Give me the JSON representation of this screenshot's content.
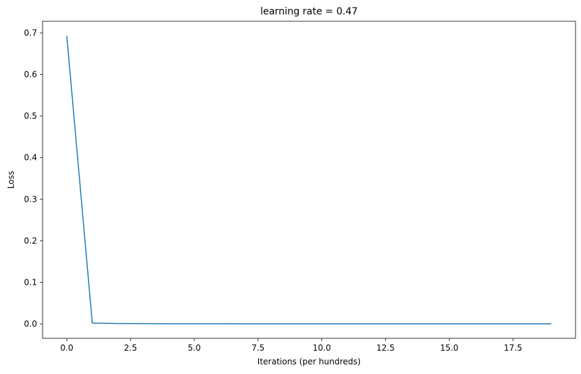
{
  "chart_data": {
    "type": "line",
    "title": "learning rate = 0.47",
    "xlabel": "Iterations (per hundreds)",
    "ylabel": "Loss",
    "xlim": [
      -0.95,
      19.95
    ],
    "ylim": [
      -0.0347,
      0.728
    ],
    "xticks": [
      0.0,
      2.5,
      5.0,
      7.5,
      10.0,
      12.5,
      15.0,
      17.5
    ],
    "xtick_labels": [
      "0.0",
      "2.5",
      "5.0",
      "7.5",
      "10.0",
      "12.5",
      "15.0",
      "17.5"
    ],
    "yticks": [
      0.0,
      0.1,
      0.2,
      0.3,
      0.4,
      0.5,
      0.6,
      0.7
    ],
    "ytick_labels": [
      "0.0",
      "0.1",
      "0.2",
      "0.3",
      "0.4",
      "0.5",
      "0.6",
      "0.7"
    ],
    "grid": false,
    "series": [
      {
        "color": "#1f77b4",
        "x": [
          0,
          1,
          2,
          3,
          4,
          5,
          6,
          7,
          8,
          9,
          10,
          11,
          12,
          13,
          14,
          15,
          16,
          17,
          18,
          19
        ],
        "y": [
          0.693,
          0.002,
          0.0008,
          0.0005,
          0.0004,
          0.0003,
          0.0003,
          0.0002,
          0.0002,
          0.0002,
          0.0002,
          0.0001,
          0.0001,
          0.0001,
          0.0001,
          0.0001,
          0.0001,
          0.0001,
          0.0001,
          0.0001
        ]
      }
    ]
  }
}
